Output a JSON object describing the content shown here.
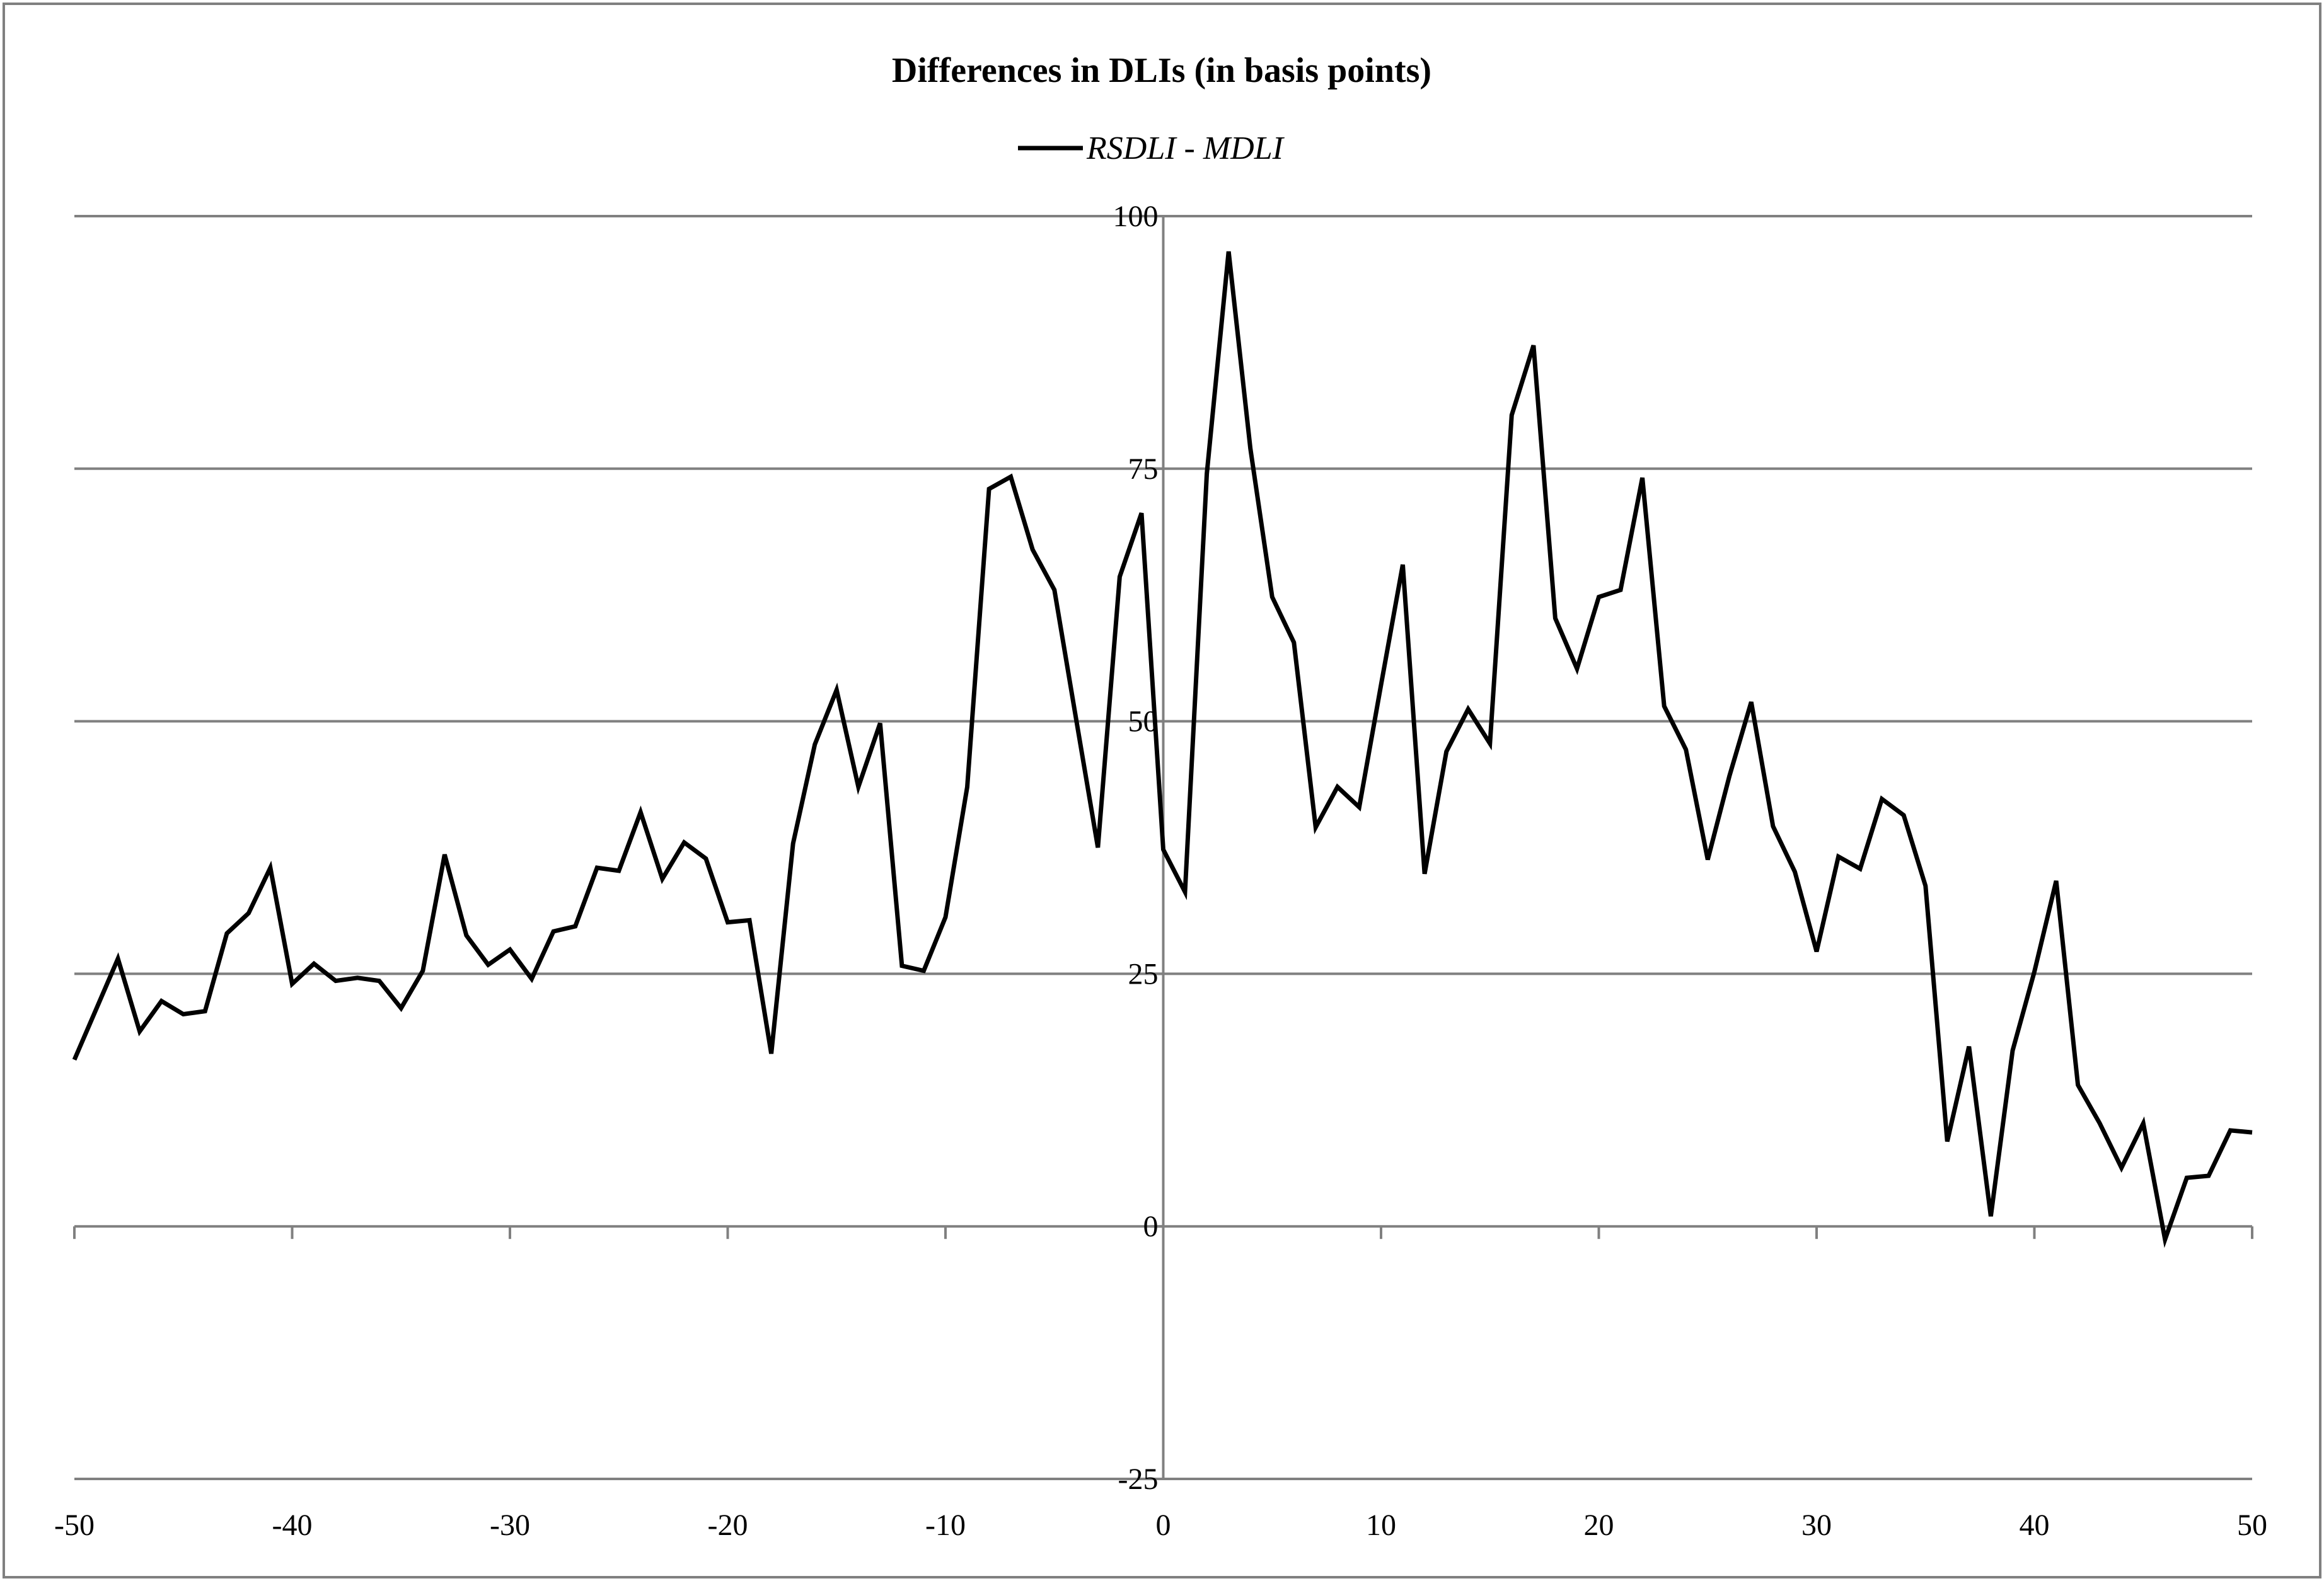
{
  "chart_data": {
    "type": "line",
    "title": "Differences in DLIs (in basis points)",
    "xlabel": "",
    "ylabel": "",
    "xlim": [
      -50,
      50
    ],
    "ylim": [
      -25,
      100
    ],
    "x_ticks": [
      -50,
      -40,
      -30,
      -20,
      -10,
      0,
      10,
      20,
      30,
      40,
      50
    ],
    "x_tick_labels": [
      "-50",
      "-40",
      "-30",
      "-20",
      "-10",
      "0",
      "10",
      "20",
      "30",
      "40",
      "50"
    ],
    "y_ticks": [
      -25,
      0,
      25,
      50,
      75,
      100
    ],
    "y_tick_labels": [
      "-25",
      "0",
      "25",
      "50",
      "75",
      "100"
    ],
    "grid": "horizontal",
    "legend_position": "top-center",
    "colors": {
      "line": "#000000",
      "grid": "#808080",
      "axis": "#808080",
      "frame": "#808080"
    },
    "series": [
      {
        "name": "RSDLI - MDLI",
        "x": [
          -50,
          -49,
          -48,
          -47,
          -46,
          -45,
          -44,
          -43,
          -42,
          -41,
          -40,
          -39,
          -38,
          -37,
          -36,
          -35,
          -34,
          -33,
          -32,
          -31,
          -30,
          -29,
          -28,
          -27,
          -26,
          -25,
          -24,
          -23,
          -22,
          -21,
          -20,
          -19,
          -18,
          -17,
          -16,
          -15,
          -14,
          -13,
          -12,
          -11,
          -10,
          -9,
          -8,
          -7,
          -6,
          -5,
          -4,
          -3,
          -2,
          -1,
          0,
          1,
          2,
          3,
          4,
          5,
          6,
          7,
          8,
          9,
          10,
          11,
          12,
          13,
          14,
          15,
          16,
          17,
          18,
          19,
          20,
          21,
          22,
          23,
          24,
          25,
          26,
          27,
          28,
          29,
          30,
          31,
          32,
          33,
          34,
          35,
          36,
          37,
          38,
          39,
          40,
          41,
          42,
          43,
          44,
          45,
          46,
          47,
          48,
          49,
          50
        ],
        "values": [
          16.5,
          21.5,
          26.5,
          19.3,
          22.3,
          21.0,
          21.3,
          29.0,
          31.0,
          35.5,
          24.0,
          26.0,
          24.3,
          24.6,
          24.3,
          21.6,
          25.3,
          36.8,
          28.8,
          25.9,
          27.4,
          24.5,
          29.2,
          29.7,
          35.5,
          35.2,
          41.0,
          34.4,
          38.0,
          36.4,
          30.1,
          30.3,
          17.1,
          37.9,
          47.7,
          53.1,
          43.5,
          49.8,
          25.8,
          25.3,
          30.6,
          43.5,
          73.0,
          74.2,
          67.0,
          63.0,
          50.2,
          37.5,
          64.3,
          70.6,
          37.3,
          33.1,
          74.5,
          96.5,
          77.0,
          62.3,
          57.8,
          39.5,
          43.5,
          41.5,
          53.6,
          65.5,
          34.9,
          47.0,
          51.2,
          47.8,
          80.3,
          87.2,
          60.2,
          55.2,
          62.3,
          63.0,
          74.1,
          51.5,
          47.2,
          36.3,
          44.6,
          51.9,
          39.6,
          35.1,
          27.2,
          36.6,
          35.4,
          42.3,
          40.7,
          33.7,
          8.4,
          17.8,
          1.0,
          17.4,
          25.2,
          34.2,
          14.0,
          10.2,
          5.8,
          10.2,
          -1.3,
          4.8,
          5.0,
          9.5,
          9.3
        ]
      }
    ]
  }
}
